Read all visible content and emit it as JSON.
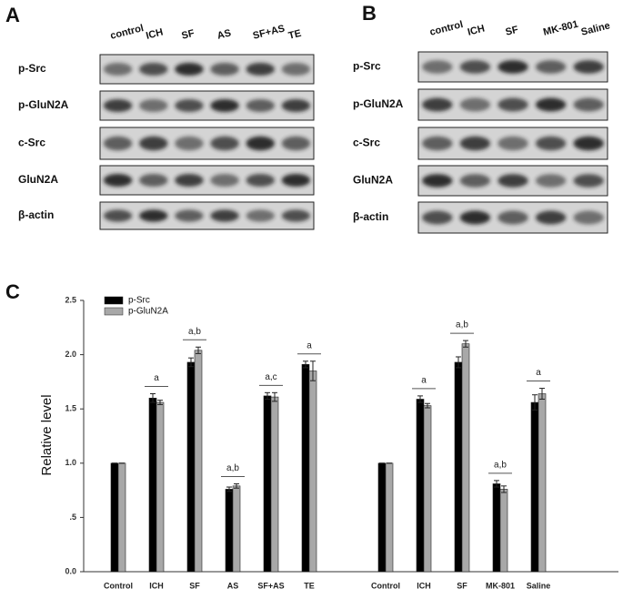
{
  "blots": [
    {
      "letter": "A",
      "columns": [
        "control",
        "ICH",
        "SF",
        "AS",
        "SF+AS",
        "TE"
      ],
      "rows": [
        "p-Src",
        "p-GluN2A",
        "c-Src",
        "GluN2A",
        "β-actin"
      ]
    },
    {
      "letter": "B",
      "columns": [
        "control",
        "ICH",
        "SF",
        "MK-801",
        "Saline"
      ],
      "rows": [
        "p-Src",
        "p-GluN2A",
        "c-Src",
        "GluN2A",
        "β-actin"
      ]
    }
  ],
  "chart_data": {
    "type": "bar",
    "panel_letter": "C",
    "y_label": "Relative  level",
    "categories": [
      "Control",
      "ICH",
      "SF",
      "AS",
      "SF+AS",
      "TE",
      null,
      "Control",
      "ICH",
      "SF",
      "MK-801",
      "Saline"
    ],
    "series": [
      {
        "name": "p-Src",
        "color": "#000000",
        "values": [
          1.0,
          1.6,
          1.93,
          0.76,
          1.62,
          1.91,
          null,
          1.0,
          1.59,
          1.93,
          0.81,
          1.56
        ],
        "errors": [
          0,
          0.04,
          0.04,
          0.02,
          0.03,
          0.03,
          null,
          0,
          0.03,
          0.05,
          0.03,
          0.07
        ]
      },
      {
        "name": "p-GluN2A",
        "color": "#a8a8a8",
        "values": [
          1.0,
          1.56,
          2.04,
          0.79,
          1.61,
          1.85,
          null,
          1.0,
          1.53,
          2.1,
          0.76,
          1.64
        ],
        "errors": [
          0,
          0.02,
          0.03,
          0.02,
          0.04,
          0.09,
          null,
          0,
          0.02,
          0.03,
          0.03,
          0.05
        ]
      }
    ],
    "sig_labels": [
      null,
      "a",
      "a,b",
      "a,b",
      "a,c",
      "a",
      null,
      null,
      "a",
      "a,b",
      "a,b",
      "a"
    ],
    "ylim": [
      0,
      2.5
    ],
    "yticks": [
      {
        "value": 0,
        "label": "0.0"
      },
      {
        "value": 0.5,
        "label": ".5"
      },
      {
        "value": 1,
        "label": "1.0"
      },
      1.5,
      {
        "value": 2,
        "label": "2.0"
      },
      2.5
    ],
    "legend": "upper left"
  }
}
